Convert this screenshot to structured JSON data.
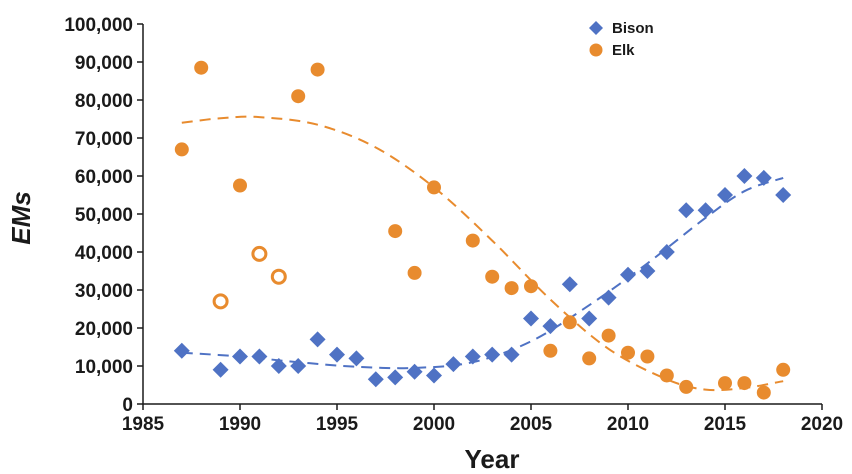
{
  "chart_data": {
    "type": "scatter",
    "xlabel": "Year",
    "ylabel": "EMs",
    "xlim": [
      1985,
      2020
    ],
    "ylim": [
      0,
      100000
    ],
    "x_ticks": [
      1985,
      1990,
      1995,
      2000,
      2005,
      2010,
      2015,
      2020
    ],
    "y_ticks": [
      0,
      10000,
      20000,
      30000,
      40000,
      50000,
      60000,
      70000,
      80000,
      90000,
      100000
    ],
    "x_tick_labels": [
      "1985",
      "1990",
      "1995",
      "2000",
      "2005",
      "2010",
      "2015",
      "2020"
    ],
    "y_tick_labels": [
      "0",
      "10,000",
      "20,000",
      "30,000",
      "40,000",
      "50,000",
      "60,000",
      "70,000",
      "80,000",
      "90,000",
      "100,000"
    ],
    "grid": false,
    "legend_position": "top-right",
    "series": [
      {
        "name": "Bison",
        "marker": "diamond",
        "color": "#4f72c4",
        "trend_color": "#4f72c4",
        "points": [
          [
            1987,
            14000
          ],
          [
            1989,
            9000
          ],
          [
            1990,
            12500
          ],
          [
            1991,
            12500
          ],
          [
            1992,
            10000
          ],
          [
            1993,
            10000
          ],
          [
            1994,
            17000
          ],
          [
            1995,
            13000
          ],
          [
            1996,
            12000
          ],
          [
            1997,
            6500
          ],
          [
            1998,
            7000
          ],
          [
            1999,
            8500
          ],
          [
            2000,
            7500
          ],
          [
            2001,
            10500
          ],
          [
            2002,
            12500
          ],
          [
            2003,
            13000
          ],
          [
            2004,
            13000
          ],
          [
            2005,
            22500
          ],
          [
            2006,
            20500
          ],
          [
            2007,
            31500
          ],
          [
            2008,
            22500
          ],
          [
            2009,
            28000
          ],
          [
            2010,
            34000
          ],
          [
            2011,
            35000
          ],
          [
            2012,
            40000
          ],
          [
            2013,
            51000
          ],
          [
            2014,
            51000
          ],
          [
            2015,
            55000
          ],
          [
            2016,
            60000
          ],
          [
            2017,
            59500
          ],
          [
            2018,
            55000
          ]
        ],
        "trend": [
          [
            1987,
            13500
          ],
          [
            1990,
            12500
          ],
          [
            1993,
            11000
          ],
          [
            1996,
            9800
          ],
          [
            1999,
            9500
          ],
          [
            2002,
            11000
          ],
          [
            2005,
            16500
          ],
          [
            2008,
            26000
          ],
          [
            2011,
            37000
          ],
          [
            2014,
            49000
          ],
          [
            2016,
            56000
          ],
          [
            2018,
            59500
          ]
        ]
      },
      {
        "name": "Elk",
        "marker": "circle",
        "color": "#e88b2e",
        "trend_color": "#e88b2e",
        "points": [
          [
            1987,
            67000
          ],
          [
            1988,
            88500
          ],
          [
            1990,
            57500
          ],
          [
            1993,
            81000
          ],
          [
            1994,
            88000
          ],
          [
            1998,
            45500
          ],
          [
            1999,
            34500
          ],
          [
            2000,
            57000
          ],
          [
            2002,
            43000
          ],
          [
            2003,
            33500
          ],
          [
            2004,
            30500
          ],
          [
            2005,
            31000
          ],
          [
            2006,
            14000
          ],
          [
            2007,
            21500
          ],
          [
            2008,
            12000
          ],
          [
            2009,
            18000
          ],
          [
            2010,
            13500
          ],
          [
            2011,
            12500
          ],
          [
            2012,
            7500
          ],
          [
            2013,
            4500
          ],
          [
            2015,
            5500
          ],
          [
            2016,
            5500
          ],
          [
            2017,
            3000
          ],
          [
            2018,
            9000
          ]
        ],
        "open_points": [
          [
            1989,
            27000
          ],
          [
            1991,
            39500
          ],
          [
            1992,
            33500
          ]
        ],
        "trend": [
          [
            1987,
            74000
          ],
          [
            1989,
            75200
          ],
          [
            1991,
            75500
          ],
          [
            1994,
            73500
          ],
          [
            1997,
            67500
          ],
          [
            2000,
            57000
          ],
          [
            2003,
            43000
          ],
          [
            2006,
            27500
          ],
          [
            2009,
            14500
          ],
          [
            2012,
            6500
          ],
          [
            2014,
            3800
          ],
          [
            2016,
            4200
          ],
          [
            2018,
            6000
          ]
        ]
      }
    ]
  }
}
